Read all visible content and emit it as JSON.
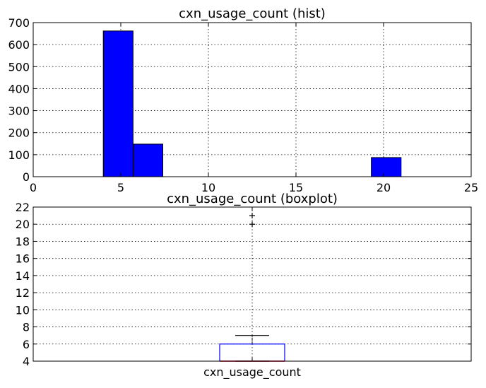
{
  "chart_data": [
    {
      "type": "bar",
      "title": "cxn_usage_count (hist)",
      "xlim": [
        0,
        25
      ],
      "ylim": [
        0,
        700
      ],
      "xticks": [
        "0",
        "5",
        "10",
        "15",
        "20",
        "25"
      ],
      "yticks": [
        "0",
        "100",
        "200",
        "300",
        "400",
        "500",
        "600",
        "700"
      ],
      "grid": true,
      "bins": [
        {
          "x0": 4.0,
          "x1": 5.7,
          "count": 662
        },
        {
          "x0": 5.7,
          "x1": 7.4,
          "count": 148
        },
        {
          "x0": 7.4,
          "x1": 9.1,
          "count": 0
        },
        {
          "x0": 9.1,
          "x1": 10.8,
          "count": 0
        },
        {
          "x0": 10.8,
          "x1": 12.5,
          "count": 0
        },
        {
          "x0": 12.5,
          "x1": 14.2,
          "count": 0
        },
        {
          "x0": 14.2,
          "x1": 15.9,
          "count": 0
        },
        {
          "x0": 15.9,
          "x1": 17.6,
          "count": 0
        },
        {
          "x0": 17.6,
          "x1": 19.3,
          "count": 0
        },
        {
          "x0": 19.3,
          "x1": 21.0,
          "count": 87
        }
      ],
      "bar_color": "#0000ff"
    },
    {
      "type": "boxplot",
      "title": "cxn_usage_count (boxplot)",
      "categories": [
        "cxn_usage_count"
      ],
      "ylim": [
        4,
        22
      ],
      "yticks": [
        "4",
        "6",
        "8",
        "10",
        "12",
        "14",
        "16",
        "18",
        "20",
        "22"
      ],
      "grid": true,
      "box": {
        "q1": 4,
        "median": 4,
        "q3": 6,
        "whisker_low": 4,
        "whisker_high": 7
      },
      "fliers": [
        20,
        21
      ],
      "box_color": "#0000ff",
      "median_color": "#ff0000"
    }
  ]
}
